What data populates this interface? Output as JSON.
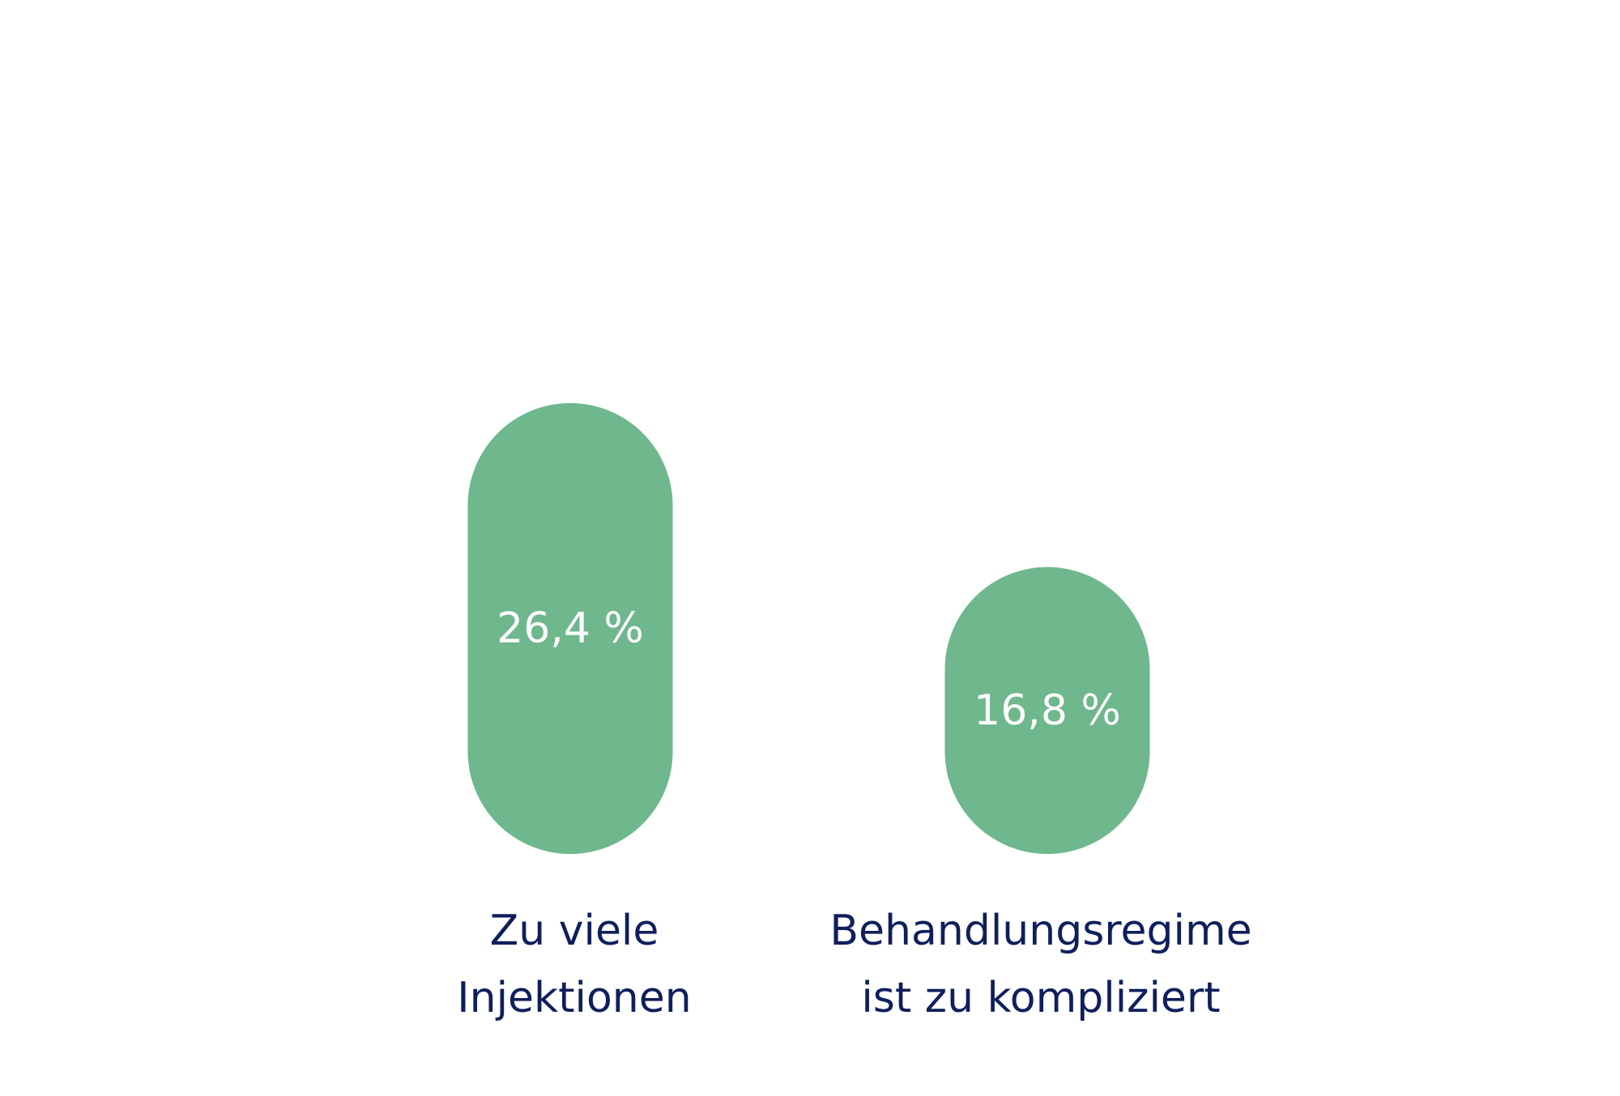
{
  "chart_data": {
    "type": "bar",
    "categories": [
      [
        "Zu viele",
        "Injektionen"
      ],
      [
        "Behandlungsregime",
        "ist zu kompliziert"
      ]
    ],
    "values": [
      26.4,
      16.8
    ],
    "value_labels": [
      "26,4 %",
      "16,8 %"
    ],
    "unit": "%",
    "title": "",
    "xlabel": "",
    "ylabel": "",
    "grid": false,
    "colors": {
      "bar": "#6fb78c",
      "value_text": "#ffffff",
      "category_text": "#0f1f5c"
    }
  }
}
